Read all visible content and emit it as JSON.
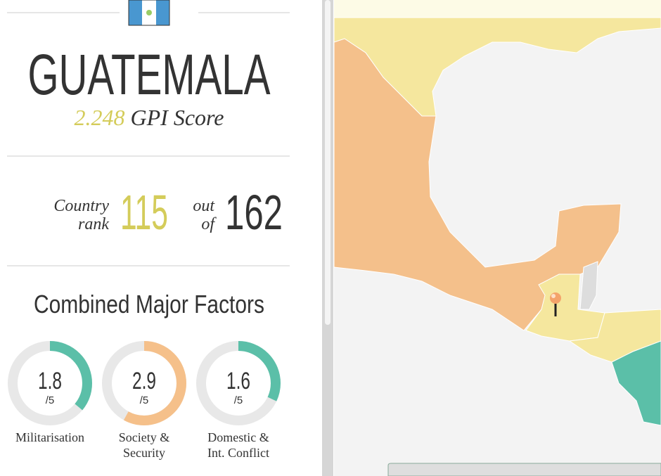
{
  "country": {
    "name": "GUATEMALA",
    "score": 2.248,
    "score_label": "GPI Score"
  },
  "rank": {
    "label_line1": "Country",
    "label_line2": "rank",
    "value": 115,
    "out_line1": "out",
    "out_line2": "of",
    "total": 162
  },
  "factors": {
    "title": "Combined Major Factors",
    "scale": {
      "value": 5,
      "label": "/5"
    },
    "items": [
      {
        "value": 1.8,
        "name_line1": "Militarisation",
        "color": "#5bbfa8"
      },
      {
        "value": 2.9,
        "name_line1": "Society &",
        "name_line2": "Security",
        "color": "#f5c08a"
      },
      {
        "value": 1.6,
        "name_line1": "Domestic &",
        "name_line2": "Int. Conflict",
        "color": "#5bbfa8"
      }
    ]
  }
}
